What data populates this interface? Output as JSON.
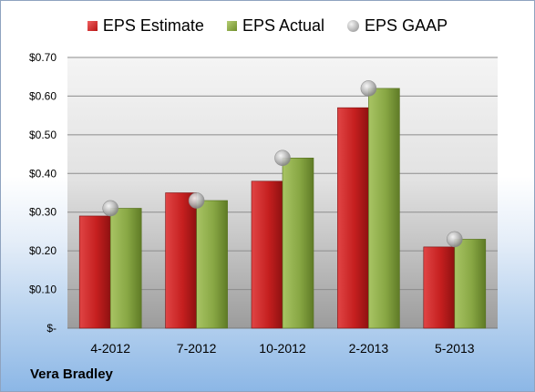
{
  "chart_data": {
    "type": "bar",
    "categories": [
      "4-2012",
      "7-2012",
      "10-2012",
      "2-2013",
      "5-2013"
    ],
    "series": [
      {
        "name": "EPS Estimate",
        "values": [
          0.29,
          0.35,
          0.38,
          0.57,
          0.21
        ],
        "color": "#c8201f"
      },
      {
        "name": "EPS Actual",
        "values": [
          0.31,
          0.33,
          0.44,
          0.62,
          0.23
        ],
        "color": "#8aa848"
      },
      {
        "name": "EPS GAAP",
        "values": [
          0.31,
          0.33,
          0.44,
          0.62,
          0.23
        ],
        "color": "#b0b0b0"
      }
    ],
    "ylim": [
      0,
      0.7
    ],
    "yticks": [
      0,
      0.1,
      0.2,
      0.3,
      0.4,
      0.5,
      0.6,
      0.7
    ],
    "ytick_labels": [
      "$-",
      "$0.10",
      "$0.20",
      "$0.30",
      "$0.40",
      "$0.50",
      "$0.60",
      "$0.70"
    ],
    "grid": true,
    "legend": "top"
  },
  "legend": {
    "estimate": "EPS Estimate",
    "actual": "EPS Actual",
    "gaap": "EPS GAAP"
  },
  "company": "Vera Bradley"
}
